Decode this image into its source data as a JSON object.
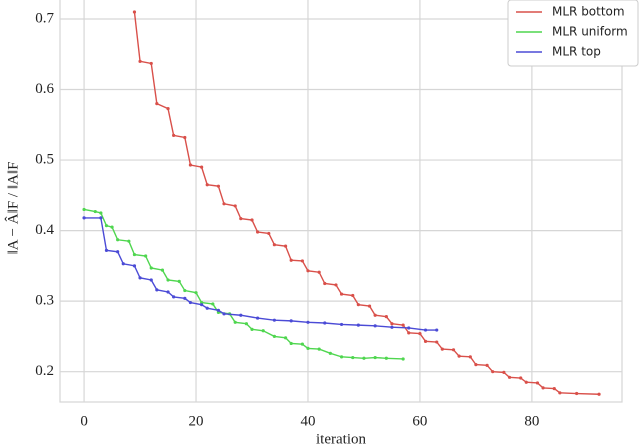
{
  "chart_data": {
    "type": "line",
    "xlabel": "iteration",
    "ylabel": "‖A − Â‖F / ‖A‖F",
    "xlim": [
      -4.3,
      96.1
    ],
    "ylim": [
      0.157,
      0.7
    ],
    "xticks": [
      0,
      20,
      40,
      60,
      80
    ],
    "yticks": [
      0.2,
      0.3,
      0.4,
      0.5,
      0.6,
      0.7
    ],
    "grid": true,
    "legend": "upper right",
    "series": [
      {
        "name": "MLR bottom",
        "color": "#d9504a",
        "x": [
          9,
          10,
          12,
          13,
          15,
          16,
          18,
          19,
          21,
          22,
          24,
          25,
          27,
          28,
          30,
          31,
          33,
          34,
          36,
          37,
          39,
          40,
          42,
          43,
          45,
          46,
          48,
          49,
          51,
          52,
          54,
          55,
          57,
          58,
          60,
          61,
          63,
          64,
          66,
          67,
          69,
          70,
          72,
          73,
          75,
          76,
          78,
          79,
          81,
          82,
          84,
          85,
          88,
          92
        ],
        "values": [
          0.71,
          0.64,
          0.637,
          0.58,
          0.573,
          0.535,
          0.532,
          0.493,
          0.49,
          0.465,
          0.463,
          0.438,
          0.435,
          0.417,
          0.415,
          0.398,
          0.396,
          0.38,
          0.378,
          0.358,
          0.357,
          0.343,
          0.341,
          0.325,
          0.323,
          0.31,
          0.308,
          0.295,
          0.293,
          0.28,
          0.278,
          0.268,
          0.266,
          0.255,
          0.254,
          0.243,
          0.242,
          0.232,
          0.231,
          0.222,
          0.221,
          0.21,
          0.209,
          0.2,
          0.199,
          0.192,
          0.191,
          0.185,
          0.184,
          0.177,
          0.176,
          0.17,
          0.169,
          0.168
        ]
      },
      {
        "name": "MLR uniform",
        "color": "#4fd64f",
        "x": [
          0,
          2,
          3,
          4,
          5,
          6,
          8,
          9,
          11,
          12,
          14,
          15,
          17,
          18,
          20,
          21,
          23,
          24,
          26,
          27,
          29,
          30,
          32,
          34,
          36,
          37,
          39,
          40,
          42,
          44,
          46,
          48,
          50,
          52,
          54,
          57
        ],
        "values": [
          0.43,
          0.427,
          0.425,
          0.407,
          0.405,
          0.387,
          0.385,
          0.366,
          0.364,
          0.347,
          0.344,
          0.33,
          0.328,
          0.315,
          0.312,
          0.298,
          0.296,
          0.284,
          0.282,
          0.27,
          0.268,
          0.26,
          0.258,
          0.25,
          0.248,
          0.24,
          0.239,
          0.233,
          0.232,
          0.226,
          0.221,
          0.22,
          0.219,
          0.22,
          0.219,
          0.218
        ]
      },
      {
        "name": "MLR top",
        "color": "#4b4bd6",
        "x": [
          0,
          3,
          4,
          6,
          7,
          9,
          10,
          12,
          13,
          15,
          16,
          18,
          19,
          21,
          22,
          24,
          25,
          28,
          31,
          34,
          37,
          40,
          43,
          46,
          49,
          52,
          55,
          58,
          61,
          63
        ],
        "values": [
          0.418,
          0.418,
          0.372,
          0.37,
          0.353,
          0.35,
          0.333,
          0.33,
          0.316,
          0.313,
          0.306,
          0.304,
          0.298,
          0.295,
          0.29,
          0.287,
          0.282,
          0.28,
          0.276,
          0.273,
          0.272,
          0.27,
          0.269,
          0.267,
          0.266,
          0.265,
          0.263,
          0.262,
          0.259,
          0.259
        ]
      }
    ]
  }
}
